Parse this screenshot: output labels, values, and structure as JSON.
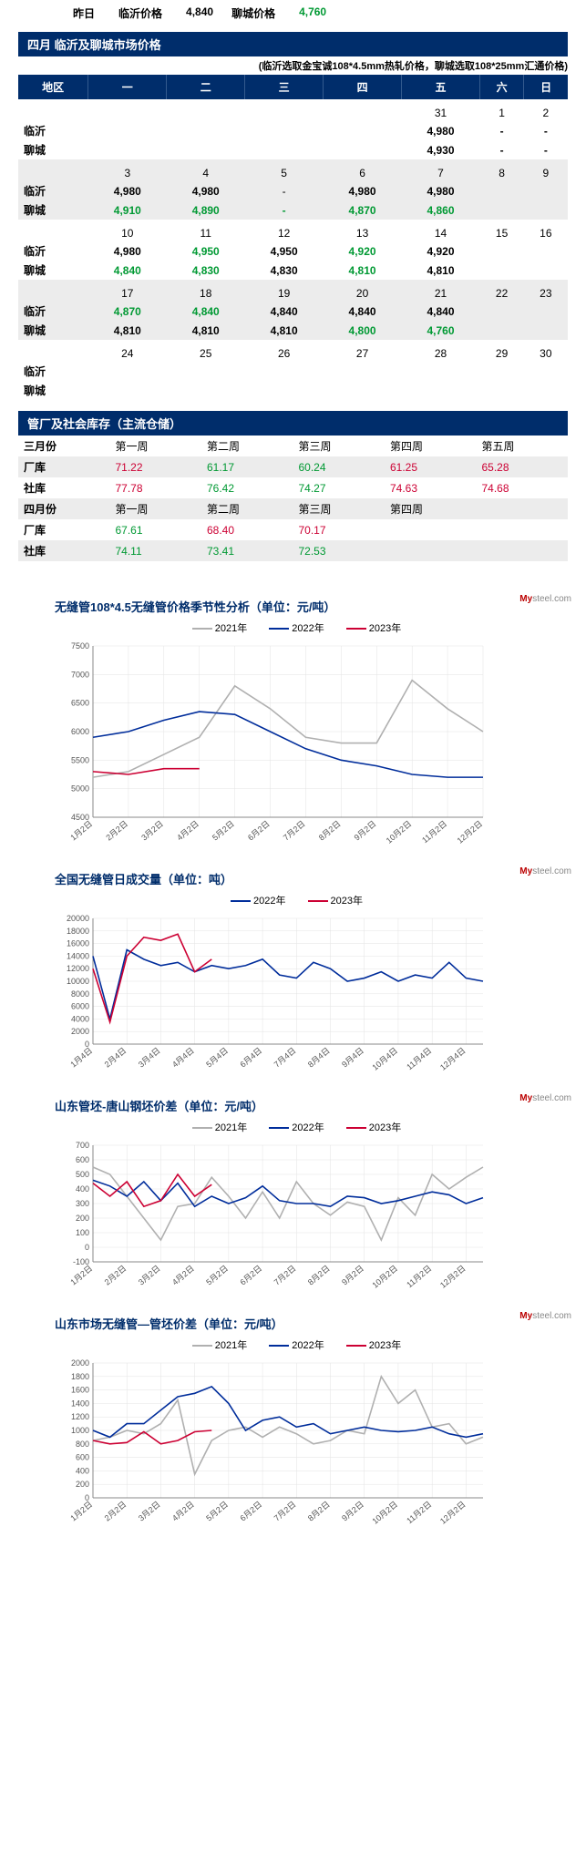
{
  "top": {
    "yesterday_label": "昨日",
    "linyi_label": "临沂价格",
    "linyi_value": "4,840",
    "liaocheng_label": "聊城价格",
    "liaocheng_value": "4,760"
  },
  "calendar": {
    "header": "四月 临沂及聊城市场价格",
    "subnote": "(临沂选取金宝诚108*4.5mm热轧价格，聊城选取108*25mm汇通价格)",
    "day_headers": [
      "地区",
      "一",
      "二",
      "三",
      "四",
      "五",
      "六",
      "日"
    ],
    "weeks": [
      {
        "days": [
          "",
          "",
          "",
          "",
          "31",
          "1",
          "2"
        ],
        "linyi": [
          "",
          "",
          "",
          "",
          "4,980",
          "-",
          "-"
        ],
        "liaocheng": [
          "",
          "",
          "",
          "",
          "4,930",
          "-",
          "-"
        ],
        "linyi_cls": [
          "",
          "",
          "",
          "",
          "blk",
          "blk",
          "blk"
        ],
        "liaocheng_cls": [
          "",
          "",
          "",
          "",
          "blk",
          "blk",
          "blk"
        ],
        "zebra": false
      },
      {
        "days": [
          "3",
          "4",
          "5",
          "6",
          "7",
          "8",
          "9"
        ],
        "linyi": [
          "4,980",
          "4,980",
          "-",
          "4,980",
          "4,980",
          "",
          ""
        ],
        "liaocheng": [
          "4,910",
          "4,890",
          "-",
          "4,870",
          "4,860",
          "",
          ""
        ],
        "linyi_cls": [
          "blk",
          "blk",
          "",
          "blk",
          "blk",
          "",
          ""
        ],
        "liaocheng_cls": [
          "grn",
          "grn",
          "grn",
          "grn",
          "grn",
          "",
          ""
        ],
        "zebra": true
      },
      {
        "days": [
          "10",
          "11",
          "12",
          "13",
          "14",
          "15",
          "16"
        ],
        "linyi": [
          "4,980",
          "4,950",
          "4,950",
          "4,920",
          "4,920",
          "",
          ""
        ],
        "liaocheng": [
          "4,840",
          "4,830",
          "4,830",
          "4,810",
          "4,810",
          "",
          ""
        ],
        "linyi_cls": [
          "blk",
          "grn",
          "blk",
          "grn",
          "blk",
          "",
          ""
        ],
        "liaocheng_cls": [
          "grn",
          "grn",
          "blk",
          "grn",
          "blk",
          "",
          ""
        ],
        "zebra": false
      },
      {
        "days": [
          "17",
          "18",
          "19",
          "20",
          "21",
          "22",
          "23"
        ],
        "linyi": [
          "4,870",
          "4,840",
          "4,840",
          "4,840",
          "4,840",
          "",
          ""
        ],
        "liaocheng": [
          "4,810",
          "4,810",
          "4,810",
          "4,800",
          "4,760",
          "",
          ""
        ],
        "linyi_cls": [
          "grn",
          "grn",
          "blk",
          "blk",
          "blk",
          "",
          ""
        ],
        "liaocheng_cls": [
          "blk",
          "blk",
          "blk",
          "grn",
          "grn",
          "",
          ""
        ],
        "zebra": true
      },
      {
        "days": [
          "24",
          "25",
          "26",
          "27",
          "28",
          "29",
          "30"
        ],
        "linyi": [
          "",
          "",
          "",
          "",
          "",
          "",
          ""
        ],
        "liaocheng": [
          "",
          "",
          "",
          "",
          "",
          "",
          ""
        ],
        "linyi_cls": [
          "",
          "",
          "",
          "",
          "",
          "",
          ""
        ],
        "liaocheng_cls": [
          "",
          "",
          "",
          "",
          "",
          "",
          ""
        ],
        "zebra": false
      }
    ],
    "row_labels": {
      "linyi": "临沂",
      "liaocheng": "聊城"
    }
  },
  "inventory": {
    "header": "管厂及社会库存（主流仓储）",
    "rows": [
      {
        "zebra": false,
        "cells": [
          "三月份",
          "第一周",
          "第二周",
          "第三周",
          "第四周",
          "第五周"
        ],
        "cls": [
          "month-lbl",
          "",
          "",
          "",
          "",
          ""
        ]
      },
      {
        "zebra": true,
        "cells": [
          "厂库",
          "71.22",
          "61.17",
          "60.24",
          "61.25",
          "65.28"
        ],
        "cls": [
          "rowlbl",
          "red",
          "grn",
          "grn",
          "red",
          "red"
        ]
      },
      {
        "zebra": false,
        "cells": [
          "社库",
          "77.78",
          "76.42",
          "74.27",
          "74.63",
          "74.68"
        ],
        "cls": [
          "rowlbl",
          "red",
          "grn",
          "grn",
          "red",
          "red"
        ]
      },
      {
        "zebra": true,
        "cells": [
          "四月份",
          "第一周",
          "第二周",
          "第三周",
          "第四周",
          ""
        ],
        "cls": [
          "month-lbl",
          "",
          "",
          "",
          "",
          ""
        ]
      },
      {
        "zebra": false,
        "cells": [
          "厂库",
          "67.61",
          "68.40",
          "70.17",
          "",
          ""
        ],
        "cls": [
          "rowlbl",
          "grn",
          "red",
          "red",
          "",
          ""
        ]
      },
      {
        "zebra": true,
        "cells": [
          "社库",
          "74.11",
          "73.41",
          "72.53",
          "",
          ""
        ],
        "cls": [
          "rowlbl",
          "grn",
          "grn",
          "grn",
          "",
          ""
        ]
      }
    ]
  },
  "charts_common": {
    "colors": {
      "2021": "#b0b0b0",
      "2022": "#002d9b",
      "2023": "#cc0033",
      "grid": "#e3e3e3",
      "axis": "#888",
      "text": "#555"
    },
    "watermark": "Mysteel.com",
    "xlabels_month2": [
      "1月2日",
      "2月2日",
      "3月2日",
      "4月2日",
      "5月2日",
      "6月2日",
      "7月2日",
      "8月2日",
      "9月2日",
      "10月2日",
      "11月2日",
      "12月2日"
    ],
    "xlabels_month4": [
      "1月4日",
      "2月4日",
      "3月4日",
      "4月4日",
      "5月4日",
      "6月4日",
      "7月4日",
      "8月4日",
      "9月4日",
      "10月4日",
      "11月4日",
      "12月4日"
    ]
  },
  "chart1": {
    "title": "无缝管108*4.5无缝管价格季节性分析（单位：元/吨）",
    "legend": [
      "2021年",
      "2022年",
      "2023年"
    ],
    "ylim": [
      4500,
      7500
    ],
    "ytick": 500,
    "series": {
      "2021": [
        5200,
        5300,
        5600,
        5900,
        6800,
        6400,
        5900,
        5800,
        5800,
        6900,
        6400,
        6000
      ],
      "2022": [
        5900,
        6000,
        6200,
        6350,
        6300,
        6000,
        5700,
        5500,
        5400,
        5250,
        5200,
        5200
      ],
      "2023": [
        5300,
        5250,
        5350,
        5350
      ]
    }
  },
  "chart2": {
    "title": "全国无缝管日成交量（单位：吨）",
    "legend": [
      "2022年",
      "2023年"
    ],
    "ylim": [
      0,
      20000
    ],
    "ytick": 2000,
    "series": {
      "2022": [
        14000,
        4000,
        15000,
        13500,
        12500,
        13000,
        11500,
        12500,
        12000,
        12500,
        13500,
        11000,
        10500,
        13000,
        12000,
        10000,
        10500,
        11500,
        10000,
        11000,
        10500,
        13000,
        10500,
        10000
      ],
      "2023": [
        12000,
        3500,
        14000,
        17000,
        16500,
        17500,
        11500,
        13500
      ]
    }
  },
  "chart3": {
    "title": "山东管坯-唐山钢坯价差（单位：元/吨）",
    "legend": [
      "2021年",
      "2022年",
      "2023年"
    ],
    "ylim": [
      -100,
      700
    ],
    "ytick": 100,
    "series": {
      "2021": [
        550,
        500,
        350,
        200,
        50,
        280,
        300,
        480,
        350,
        200,
        380,
        200,
        450,
        300,
        220,
        310,
        280,
        50,
        340,
        220,
        500,
        400,
        480,
        550
      ],
      "2022": [
        460,
        420,
        350,
        450,
        320,
        440,
        280,
        350,
        300,
        340,
        420,
        320,
        300,
        300,
        280,
        350,
        340,
        300,
        320,
        350,
        380,
        360,
        300,
        340
      ],
      "2023": [
        440,
        350,
        450,
        280,
        320,
        500,
        350,
        430
      ]
    }
  },
  "chart4": {
    "title": "山东市场无缝管—管坯价差（单位：元/吨）",
    "legend": [
      "2021年",
      "2022年",
      "2023年"
    ],
    "ylim": [
      0,
      2000
    ],
    "ytick": 200,
    "series": {
      "2021": [
        850,
        900,
        1000,
        950,
        1100,
        1450,
        350,
        850,
        1000,
        1050,
        900,
        1050,
        950,
        800,
        850,
        1000,
        950,
        1800,
        1400,
        1600,
        1050,
        1100,
        800,
        900
      ],
      "2022": [
        1000,
        900,
        1100,
        1100,
        1300,
        1500,
        1550,
        1650,
        1400,
        1000,
        1150,
        1200,
        1050,
        1100,
        950,
        1000,
        1050,
        1000,
        980,
        1000,
        1050,
        950,
        900,
        950
      ],
      "2023": [
        850,
        800,
        820,
        980,
        800,
        850,
        980,
        1000
      ]
    }
  }
}
